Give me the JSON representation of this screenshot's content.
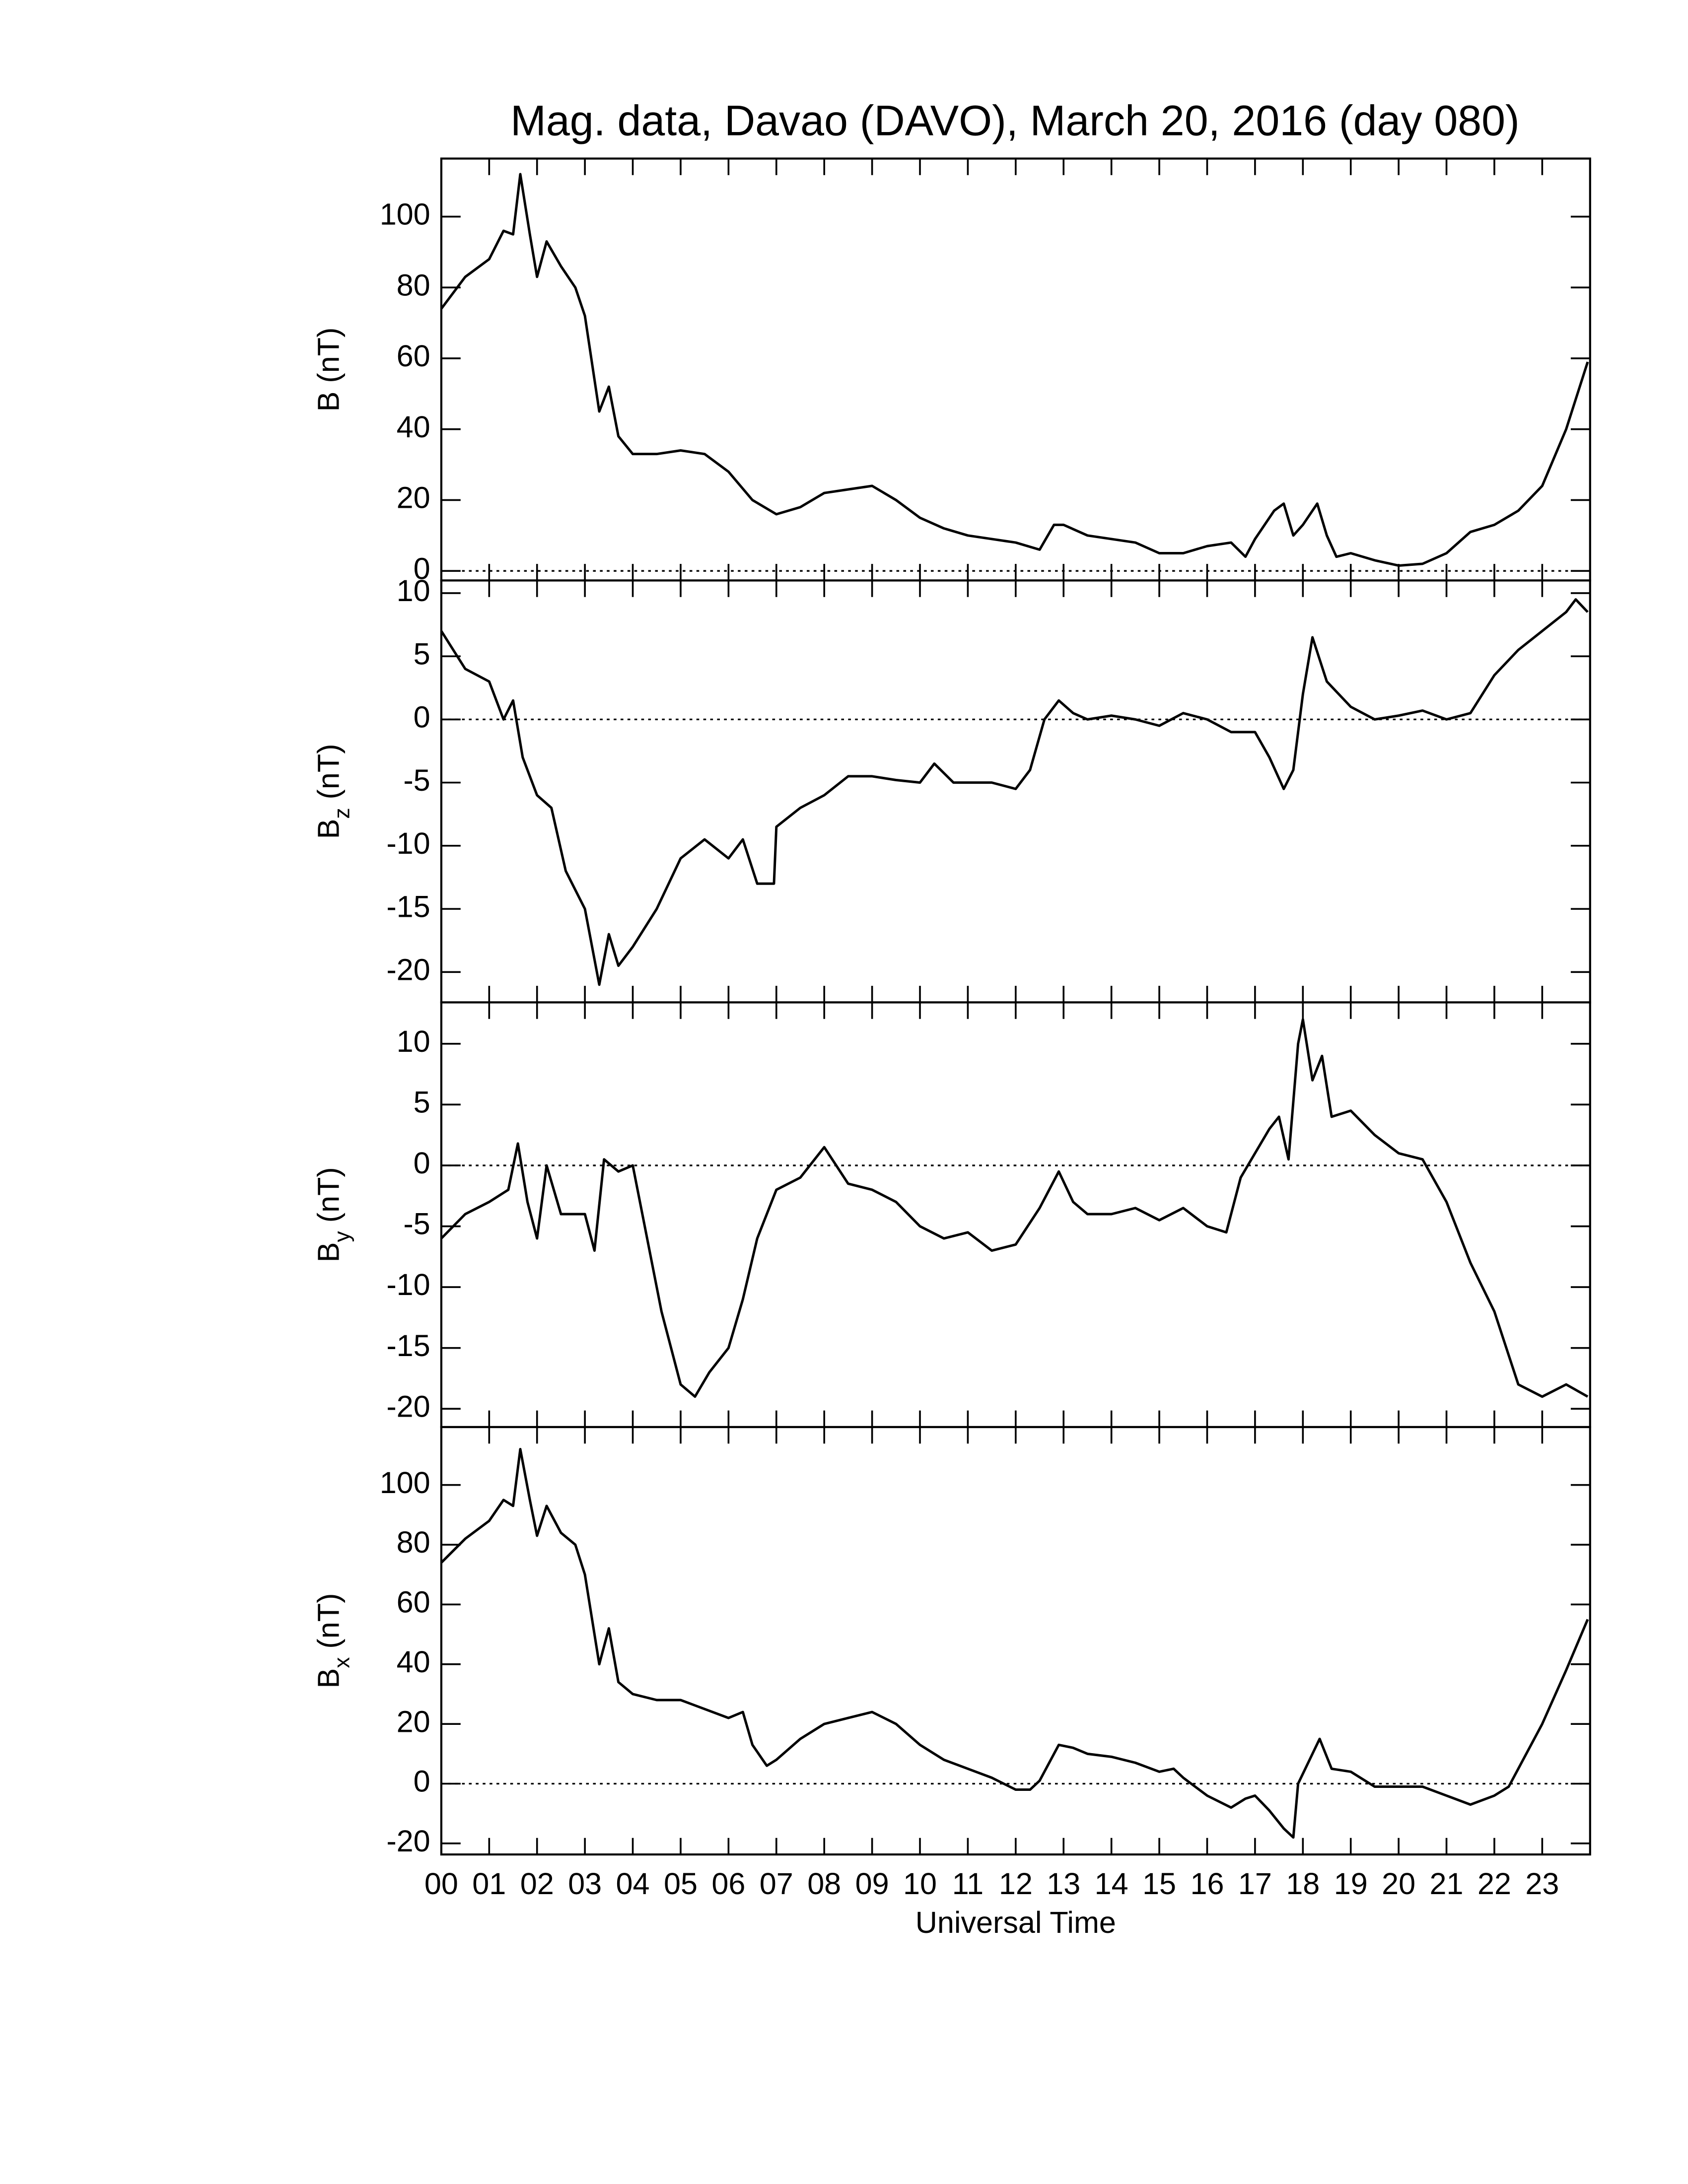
{
  "chart_data": [
    {
      "type": "line",
      "title": "Mag. data, Davao (DAVO), March 20, 2016 (day 080)",
      "ylabel": {
        "symbol": "B",
        "unit": " (nT)"
      },
      "xlim": [
        0,
        24
      ],
      "ylim": [
        -2.7,
        116.4
      ],
      "yticks": [
        0,
        20,
        40,
        60,
        80,
        100
      ],
      "zero_line": true,
      "color": "#000000",
      "x": [
        0,
        0.5,
        1.0,
        1.3,
        1.5,
        1.65,
        1.85,
        2.0,
        2.2,
        2.5,
        2.8,
        3.0,
        3.3,
        3.5,
        3.7,
        4.0,
        4.5,
        5.0,
        5.5,
        6.0,
        6.5,
        7.0,
        7.5,
        8.0,
        8.5,
        9.0,
        9.5,
        10.0,
        10.5,
        11.0,
        11.5,
        12.0,
        12.5,
        12.8,
        13.0,
        13.5,
        14.0,
        14.5,
        15.0,
        15.5,
        16.0,
        16.5,
        16.8,
        17.0,
        17.4,
        17.6,
        17.8,
        18.0,
        18.3,
        18.5,
        18.7,
        19.0,
        19.5,
        20.0,
        20.5,
        21.0,
        21.5,
        22.0,
        22.5,
        23.0,
        23.5,
        23.95
      ],
      "values": [
        74,
        83,
        88,
        96,
        95,
        112,
        95,
        83,
        93,
        86,
        80,
        72,
        45,
        52,
        38,
        33,
        33,
        34,
        33,
        28,
        20,
        16,
        18,
        22,
        23,
        24,
        20,
        15,
        12,
        10,
        9,
        8,
        6,
        13,
        13,
        10,
        9,
        8,
        5,
        5,
        7,
        8,
        4,
        9,
        17,
        19,
        10,
        13,
        19,
        10,
        4,
        5,
        3,
        1.5,
        2,
        5,
        11,
        13,
        17,
        24,
        40,
        59
      ]
    },
    {
      "type": "line",
      "ylabel": {
        "symbol": "B",
        "subscript": "z",
        "unit": " (nT)"
      },
      "xlim": [
        0,
        24
      ],
      "ylim": [
        -22.4,
        11
      ],
      "yticks": [
        10,
        5,
        0,
        -5,
        -10,
        -15,
        -20
      ],
      "zero_line": true,
      "color": "#000000",
      "x": [
        0,
        0.5,
        1.0,
        1.3,
        1.5,
        1.7,
        2.0,
        2.3,
        2.6,
        3.0,
        3.3,
        3.5,
        3.7,
        4.0,
        4.5,
        5.0,
        5.5,
        6.0,
        6.3,
        6.6,
        6.95,
        7.0,
        7.5,
        8.0,
        8.5,
        9.0,
        9.5,
        10.0,
        10.3,
        10.7,
        11.0,
        11.5,
        12.0,
        12.3,
        12.6,
        12.9,
        13.2,
        13.5,
        14.0,
        14.5,
        15.0,
        15.5,
        16.0,
        16.5,
        17.0,
        17.3,
        17.6,
        17.8,
        18.0,
        18.2,
        18.5,
        19.0,
        19.5,
        20.0,
        20.5,
        21.0,
        21.5,
        22.0,
        22.5,
        23.0,
        23.5,
        23.7,
        23.95
      ],
      "values": [
        7,
        4,
        3,
        0,
        1.5,
        -3,
        -6,
        -7,
        -12,
        -15,
        -21,
        -17,
        -19.5,
        -18,
        -15,
        -11,
        -9.5,
        -11,
        -9.5,
        -13,
        -13,
        -8.5,
        -7,
        -6,
        -4.5,
        -4.5,
        -4.8,
        -5,
        -3.5,
        -5,
        -5,
        -5,
        -5.5,
        -4,
        0,
        1.5,
        0.5,
        0,
        0.3,
        0,
        -0.5,
        0.5,
        0,
        -1,
        -1,
        -3,
        -5.5,
        -4,
        2,
        6.5,
        3,
        1,
        0,
        0.3,
        0.7,
        0,
        0.5,
        3.5,
        5.5,
        7,
        8.5,
        9.5,
        8.5
      ]
    },
    {
      "type": "line",
      "ylabel": {
        "symbol": "B",
        "subscript": "y",
        "unit": " (nT)"
      },
      "xlim": [
        0,
        24
      ],
      "ylim": [
        -21.5,
        13.4
      ],
      "yticks": [
        10,
        5,
        0,
        -5,
        -10,
        -15,
        -20
      ],
      "zero_line": true,
      "color": "#000000",
      "x": [
        0,
        0.5,
        1.0,
        1.4,
        1.6,
        1.8,
        2.0,
        2.2,
        2.5,
        3.0,
        3.2,
        3.4,
        3.7,
        4.0,
        4.3,
        4.6,
        5.0,
        5.3,
        5.6,
        6.0,
        6.3,
        6.6,
        7.0,
        7.5,
        8.0,
        8.5,
        9.0,
        9.5,
        10.0,
        10.5,
        11.0,
        11.5,
        12.0,
        12.5,
        12.9,
        13.2,
        13.5,
        14.0,
        14.5,
        15.0,
        15.5,
        16.0,
        16.4,
        16.7,
        17.0,
        17.3,
        17.5,
        17.7,
        17.9,
        18.0,
        18.2,
        18.4,
        18.6,
        19.0,
        19.5,
        20.0,
        20.5,
        21.0,
        21.5,
        22.0,
        22.5,
        23.0,
        23.5,
        23.95
      ],
      "values": [
        -6,
        -4,
        -3,
        -2,
        1.8,
        -3,
        -6,
        0,
        -4,
        -4,
        -7,
        0.5,
        -0.5,
        0,
        -6,
        -12,
        -18,
        -19,
        -17,
        -15,
        -11,
        -6,
        -2,
        -1,
        1.5,
        -1.5,
        -2,
        -3,
        -5,
        -6,
        -5.5,
        -7,
        -6.5,
        -3.5,
        -0.5,
        -3,
        -4,
        -4,
        -3.5,
        -4.5,
        -3.5,
        -5,
        -5.5,
        -1,
        1,
        3,
        4,
        0.5,
        10,
        12,
        7,
        9,
        4,
        4.5,
        2.5,
        1,
        0.5,
        -3,
        -8,
        -12,
        -18,
        -19,
        -18,
        -19
      ]
    },
    {
      "type": "line",
      "ylabel": {
        "symbol": "B",
        "subscript": "x",
        "unit": " (nT)"
      },
      "xlabel": "Universal Time",
      "xlim": [
        0,
        24
      ],
      "ylim": [
        -23.7,
        119.4
      ],
      "yticks": [
        -20,
        0,
        20,
        40,
        60,
        80,
        100
      ],
      "zero_line": true,
      "color": "#000000",
      "xticks": [
        {
          "value": 0,
          "label": "00"
        },
        {
          "value": 1,
          "label": "01"
        },
        {
          "value": 2,
          "label": "02"
        },
        {
          "value": 3,
          "label": "03"
        },
        {
          "value": 4,
          "label": "04"
        },
        {
          "value": 5,
          "label": "05"
        },
        {
          "value": 6,
          "label": "06"
        },
        {
          "value": 7,
          "label": "07"
        },
        {
          "value": 8,
          "label": "08"
        },
        {
          "value": 9,
          "label": "09"
        },
        10,
        11,
        12,
        13,
        14,
        15,
        16,
        17,
        18,
        19,
        20,
        21,
        22,
        23
      ],
      "x": [
        0,
        0.5,
        1.0,
        1.3,
        1.5,
        1.65,
        1.85,
        2.0,
        2.2,
        2.5,
        2.8,
        3.0,
        3.3,
        3.5,
        3.7,
        4.0,
        4.5,
        5.0,
        5.5,
        6.0,
        6.3,
        6.5,
        6.8,
        7.0,
        7.5,
        8.0,
        8.5,
        9.0,
        9.5,
        10.0,
        10.5,
        11.0,
        11.5,
        12.0,
        12.3,
        12.5,
        12.9,
        13.2,
        13.5,
        14.0,
        14.5,
        15.0,
        15.3,
        15.5,
        16.0,
        16.5,
        16.8,
        17.0,
        17.3,
        17.6,
        17.8,
        17.9,
        18.2,
        18.35,
        18.6,
        19.0,
        19.5,
        20.0,
        20.5,
        21.0,
        21.5,
        22.0,
        22.3,
        22.5,
        23.0,
        23.5,
        23.95
      ],
      "values": [
        74,
        82,
        88,
        95,
        93,
        112,
        95,
        83,
        93,
        84,
        80,
        70,
        40,
        52,
        34,
        30,
        28,
        28,
        25,
        22,
        24,
        13,
        6,
        8,
        15,
        20,
        22,
        24,
        20,
        13,
        8,
        5,
        2,
        -2,
        -2,
        1,
        13,
        12,
        10,
        9,
        7,
        4,
        5,
        2,
        -4,
        -8,
        -5,
        -4,
        -9,
        -15,
        -18,
        0,
        10,
        15,
        5,
        4,
        -1,
        -1,
        -1,
        -4,
        -7,
        -4,
        -1,
        5,
        20,
        38,
        55
      ]
    }
  ]
}
